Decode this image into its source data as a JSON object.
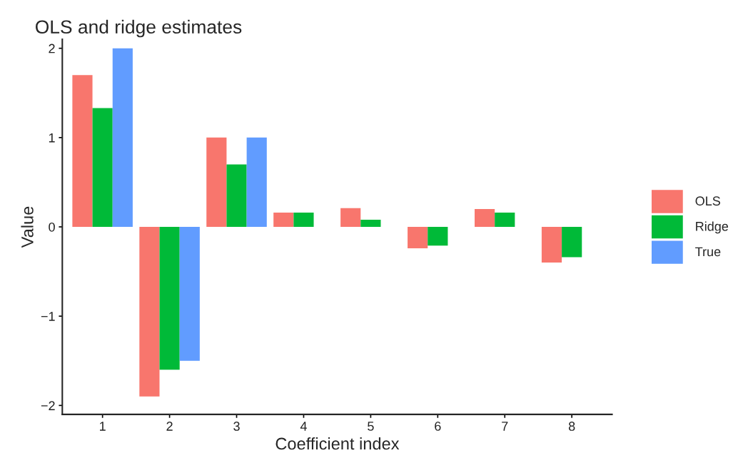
{
  "chart_data": {
    "type": "bar",
    "title": "OLS and ridge estimates",
    "xlabel": "Coefficient index",
    "ylabel": "Value",
    "categories": [
      "1",
      "2",
      "3",
      "4",
      "5",
      "6",
      "7",
      "8"
    ],
    "series": [
      {
        "name": "OLS",
        "color": "#f8766d",
        "values": [
          1.7,
          -1.9,
          1.0,
          0.16,
          0.21,
          -0.24,
          0.2,
          -0.4
        ]
      },
      {
        "name": "Ridge",
        "color": "#00ba38",
        "values": [
          1.33,
          -1.6,
          0.7,
          0.16,
          0.08,
          -0.21,
          0.16,
          -0.34
        ]
      },
      {
        "name": "True",
        "color": "#619cff",
        "values": [
          2.0,
          -1.5,
          1.0,
          0,
          0,
          0,
          0,
          0
        ]
      }
    ],
    "ylim": [
      -2.1,
      2.1
    ],
    "yticks": [
      {
        "value": -2,
        "label": "−2"
      },
      {
        "value": -1,
        "label": "−1"
      },
      0,
      1,
      2
    ],
    "grid": false,
    "legend": "right"
  }
}
